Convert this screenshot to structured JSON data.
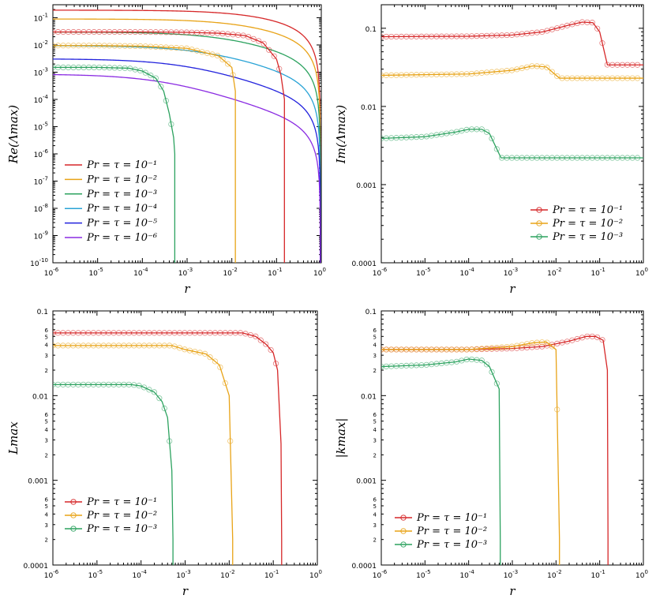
{
  "colors": {
    "red": "#d62728",
    "orange": "#e8a317",
    "green": "#2ca25f",
    "cyan": "#29a3d6",
    "blue": "#2222dd",
    "purple": "#8a2be2"
  },
  "chart_data": [
    {
      "type": "line",
      "panel": "top-left",
      "xlabel": "r",
      "ylabel": "Re(Λmax)",
      "xscale": "log",
      "yscale": "log",
      "xlim": [
        1e-06,
        1
      ],
      "ylim": [
        1e-10,
        0.3
      ],
      "xticks": [
        1e-06,
        1e-05,
        0.0001,
        0.001,
        0.01,
        0.1,
        1
      ],
      "xtick_labels": [
        [
          "10",
          "-6"
        ],
        [
          "10",
          "-5"
        ],
        [
          "10",
          "-4"
        ],
        [
          "10",
          "-3"
        ],
        [
          "10",
          "-2"
        ],
        [
          "10",
          "-1"
        ],
        [
          "10",
          "0"
        ]
      ],
      "yticks": [
        1e-10,
        1e-09,
        1e-08,
        1e-07,
        1e-06,
        1e-05,
        0.0001,
        0.001,
        0.01,
        0.1
      ],
      "ytick_labels": [
        [
          "10",
          "-10"
        ],
        [
          "10",
          "-9"
        ],
        [
          "10",
          "-8"
        ],
        [
          "10",
          "-7"
        ],
        [
          "10",
          "-6"
        ],
        [
          "10",
          "-5"
        ],
        [
          "10",
          "-4"
        ],
        [
          "10",
          "-3"
        ],
        [
          "10",
          "-2"
        ],
        [
          "10",
          "-1"
        ]
      ],
      "legend_position": "bottom-left",
      "series": [
        {
          "name": "Pr = τ = 10⁻¹",
          "color": "red",
          "kind": "analytic",
          "A": 0.19,
          "rc": 0.95
        },
        {
          "name": "Pr = τ = 10⁻²",
          "color": "orange",
          "kind": "analytic",
          "A": 0.09,
          "rc": 0.95
        },
        {
          "name": "Pr = τ = 10⁻³",
          "color": "green",
          "kind": "analytic",
          "A": 0.03,
          "rc": 0.95
        },
        {
          "name": "Pr = τ = 10⁻⁴",
          "color": "cyan",
          "kind": "analytic",
          "A": 0.0095,
          "rc": 0.95
        },
        {
          "name": "Pr = τ = 10⁻⁵",
          "color": "blue",
          "kind": "analytic",
          "A": 0.0031,
          "rc": 0.95
        },
        {
          "name": "Pr = τ = 10⁻⁶",
          "color": "purple",
          "kind": "analytic",
          "A": 0.00085,
          "rc": 0.95
        },
        {
          "name": "",
          "color": "red",
          "kind": "numeric",
          "markers": true,
          "x": [
            1e-06,
            0.0001,
            0.001,
            0.005,
            0.02,
            0.05,
            0.1,
            0.125,
            0.15,
            0.15
          ],
          "y": [
            0.03,
            0.03,
            0.029,
            0.027,
            0.022,
            0.012,
            0.003,
            0.0008,
            0.0001,
            1e-10
          ]
        },
        {
          "name": "",
          "color": "orange",
          "kind": "numeric",
          "markers": true,
          "x": [
            1e-06,
            1e-05,
            0.0001,
            0.001,
            0.005,
            0.01,
            0.012,
            0.012
          ],
          "y": [
            0.0095,
            0.0095,
            0.009,
            0.0075,
            0.004,
            0.0015,
            0.0002,
            1e-10
          ]
        },
        {
          "name": "",
          "color": "green",
          "kind": "numeric",
          "markers": true,
          "x": [
            1e-06,
            1e-05,
            5e-05,
            0.0001,
            0.0002,
            0.0003,
            0.0004,
            0.0005,
            0.00053,
            0.00053
          ],
          "y": [
            0.0015,
            0.0015,
            0.0014,
            0.0011,
            0.0006,
            0.0002,
            3e-05,
            4e-06,
            1e-06,
            1e-10
          ]
        }
      ]
    },
    {
      "type": "line",
      "panel": "top-right",
      "xlabel": "r",
      "ylabel": "Im(Λmax)",
      "xscale": "log",
      "yscale": "log",
      "xlim": [
        1e-06,
        1
      ],
      "ylim": [
        0.0001,
        0.2
      ],
      "xticks": [
        1e-06,
        1e-05,
        0.0001,
        0.001,
        0.01,
        0.1,
        1
      ],
      "xtick_labels": [
        [
          "10",
          "-6"
        ],
        [
          "10",
          "-5"
        ],
        [
          "10",
          "-4"
        ],
        [
          "10",
          "-3"
        ],
        [
          "10",
          "-2"
        ],
        [
          "10",
          "-1"
        ],
        [
          "10",
          "0"
        ]
      ],
      "yticks": [
        0.0001,
        0.001,
        0.01,
        0.1
      ],
      "ytick_labels": [
        [
          "0.0001",
          ""
        ],
        [
          "0.001",
          ""
        ],
        [
          "0.01",
          ""
        ],
        [
          "0.1",
          ""
        ]
      ],
      "legend_position": "bottom-right",
      "series": [
        {
          "name": "Pr = τ = 10⁻¹",
          "color": "red",
          "markers": true,
          "x": [
            1e-06,
            0.0001,
            0.001,
            0.005,
            0.02,
            0.04,
            0.07,
            0.1,
            0.15,
            1
          ],
          "y": [
            0.078,
            0.079,
            0.082,
            0.09,
            0.11,
            0.12,
            0.118,
            0.09,
            0.034,
            0.034
          ]
        },
        {
          "name": "Pr = τ = 10⁻²",
          "color": "orange",
          "markers": true,
          "x": [
            1e-06,
            0.0001,
            0.001,
            0.003,
            0.006,
            0.012,
            1
          ],
          "y": [
            0.025,
            0.026,
            0.029,
            0.033,
            0.032,
            0.023,
            0.023
          ]
        },
        {
          "name": "Pr = τ = 10⁻³",
          "color": "green",
          "markers": true,
          "x": [
            1e-06,
            1e-05,
            5e-05,
            0.0001,
            0.0002,
            0.0003,
            0.00055,
            1
          ],
          "y": [
            0.0039,
            0.0041,
            0.0047,
            0.0051,
            0.0051,
            0.0045,
            0.0022,
            0.0022
          ]
        }
      ]
    },
    {
      "type": "line",
      "panel": "bottom-left",
      "xlabel": "r",
      "ylabel": "Lmax",
      "xscale": "log",
      "yscale": "log",
      "xlim": [
        1e-06,
        1
      ],
      "ylim": [
        0.0001,
        0.1
      ],
      "xticks": [
        1e-06,
        1e-05,
        0.0001,
        0.001,
        0.01,
        0.1,
        1
      ],
      "xtick_labels": [
        [
          "10",
          "-6"
        ],
        [
          "10",
          "-5"
        ],
        [
          "10",
          "-4"
        ],
        [
          "10",
          "-3"
        ],
        [
          "10",
          "-2"
        ],
        [
          "10",
          "-1"
        ],
        [
          "10",
          "0"
        ]
      ],
      "yticks": [
        0.0001,
        0.001,
        0.01,
        0.1
      ],
      "ytick_labels": [
        [
          "0.0001",
          ""
        ],
        [
          "0.001",
          ""
        ],
        [
          "0.01",
          ""
        ],
        [
          "0.1",
          ""
        ]
      ],
      "minor_labels": [
        "2",
        "3",
        "4",
        "5",
        "6"
      ],
      "legend_position": "bottom-left",
      "series": [
        {
          "name": "Pr = τ = 10⁻¹",
          "color": "red",
          "markers": true,
          "x": [
            1e-06,
            0.02,
            0.04,
            0.07,
            0.1,
            0.125,
            0.15,
            0.155,
            0.155
          ],
          "y": [
            0.055,
            0.055,
            0.05,
            0.04,
            0.032,
            0.02,
            0.0027,
            0.0002,
            0.0001
          ]
        },
        {
          "name": "Pr = τ = 10⁻²",
          "color": "orange",
          "markers": true,
          "x": [
            1e-06,
            0.0005,
            0.001,
            0.003,
            0.006,
            0.01,
            0.012,
            0.012
          ],
          "y": [
            0.039,
            0.039,
            0.035,
            0.031,
            0.023,
            0.01,
            0.0002,
            0.0001
          ]
        },
        {
          "name": "Pr = τ = 10⁻³",
          "color": "green",
          "markers": true,
          "x": [
            1e-06,
            6e-05,
            0.0001,
            0.0002,
            0.0003,
            0.0004,
            0.0005,
            0.00053,
            0.00053
          ],
          "y": [
            0.0135,
            0.0135,
            0.013,
            0.011,
            0.0085,
            0.0055,
            0.0013,
            0.0002,
            0.0001
          ]
        }
      ]
    },
    {
      "type": "line",
      "panel": "bottom-right",
      "xlabel": "r",
      "ylabel": "|kmax|",
      "xscale": "log",
      "yscale": "log",
      "xlim": [
        1e-06,
        1
      ],
      "ylim": [
        0.0001,
        0.1
      ],
      "xticks": [
        1e-06,
        1e-05,
        0.0001,
        0.001,
        0.01,
        0.1,
        1
      ],
      "xtick_labels": [
        [
          "10",
          "-6"
        ],
        [
          "10",
          "-5"
        ],
        [
          "10",
          "-4"
        ],
        [
          "10",
          "-3"
        ],
        [
          "10",
          "-2"
        ],
        [
          "10",
          "-1"
        ],
        [
          "10",
          "0"
        ]
      ],
      "yticks": [
        0.0001,
        0.001,
        0.01,
        0.1
      ],
      "ytick_labels": [
        [
          "0.0001",
          ""
        ],
        [
          "0.001",
          ""
        ],
        [
          "0.01",
          ""
        ],
        [
          "0.1",
          ""
        ]
      ],
      "minor_labels": [
        "2",
        "3",
        "4",
        "5",
        "6"
      ],
      "legend_position": "bottom-left",
      "series": [
        {
          "name": "Pr = τ = 10⁻¹",
          "color": "red",
          "markers": true,
          "x": [
            1e-06,
            0.0001,
            0.001,
            0.005,
            0.02,
            0.05,
            0.08,
            0.12,
            0.15,
            0.155,
            0.155
          ],
          "y": [
            0.035,
            0.035,
            0.036,
            0.038,
            0.044,
            0.05,
            0.05,
            0.045,
            0.02,
            0.0002,
            0.0001
          ]
        },
        {
          "name": "Pr = τ = 10⁻²",
          "color": "orange",
          "markers": true,
          "x": [
            1e-06,
            0.0001,
            0.001,
            0.003,
            0.006,
            0.01,
            0.012,
            0.012
          ],
          "y": [
            0.035,
            0.035,
            0.038,
            0.042,
            0.043,
            0.035,
            0.0002,
            0.0001
          ]
        },
        {
          "name": "Pr = τ = 10⁻³",
          "color": "green",
          "markers": true,
          "x": [
            1e-06,
            1e-05,
            5e-05,
            0.0001,
            0.0002,
            0.0003,
            0.0005,
            0.00053,
            0.00053
          ],
          "y": [
            0.022,
            0.023,
            0.025,
            0.027,
            0.026,
            0.022,
            0.012,
            0.0002,
            0.0001
          ]
        }
      ]
    }
  ]
}
